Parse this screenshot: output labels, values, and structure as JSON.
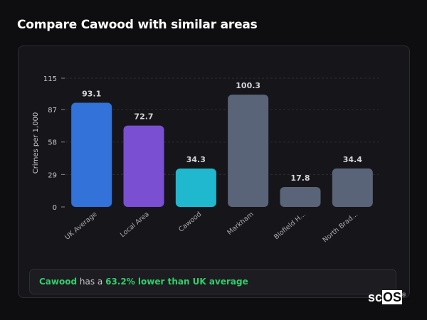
{
  "header": {
    "title": "Compare Cawood with similar areas"
  },
  "summary": {
    "area": "Cawood",
    "middle": " has a ",
    "highlight": "63.2% lower than UK average"
  },
  "logo": {
    "text_a": "sc",
    "text_b": "OS",
    "mark": "®"
  },
  "colors": {
    "uk": "#3272d9",
    "local": "#7b4fd1",
    "cawood": "#20b8cf",
    "other": "#5a6478",
    "label": "#c8c8cc",
    "value": "#d4d4d8",
    "grid": "#2c2c33"
  },
  "chart_data": {
    "type": "bar",
    "title": "Compare Cawood with similar areas",
    "xlabel": "",
    "ylabel": "Crimes per 1,000",
    "ylim": [
      0,
      115
    ],
    "yticks": [
      0,
      29,
      58,
      87,
      115
    ],
    "grid": true,
    "categories": [
      "UK Average",
      "Local Area",
      "Cawood",
      "Markham",
      "Blofield H...",
      "North Brad..."
    ],
    "values": [
      93.1,
      72.7,
      34.3,
      100.3,
      17.8,
      34.4
    ],
    "value_labels": [
      "93.1",
      "72.7",
      "34.3",
      "100.3",
      "17.8",
      "34.4"
    ],
    "bar_colors": [
      "#3272d9",
      "#7b4fd1",
      "#20b8cf",
      "#5a6478",
      "#5a6478",
      "#5a6478"
    ]
  }
}
